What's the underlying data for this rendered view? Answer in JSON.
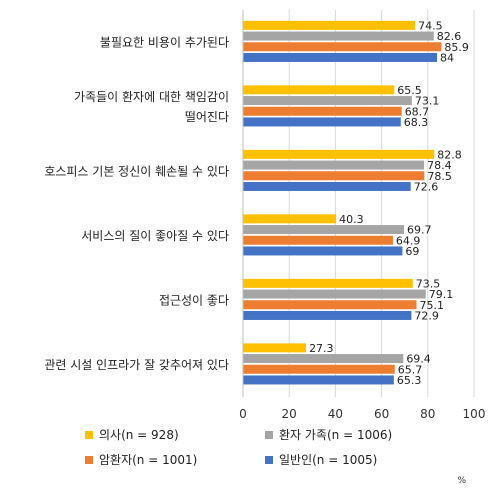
{
  "chart_data": {
    "type": "bar",
    "orientation": "horizontal",
    "categories": [
      [
        "불필요한 비용이 추가된다"
      ],
      [
        "가족들이 환자에 대한 책임감이",
        "떨어진다"
      ],
      [
        "호스피스 기본 정신이 훼손될 수 있다"
      ],
      [
        "서비스의 질이 좋아질 수 있다"
      ],
      [
        "접근성이 좋다"
      ],
      [
        "관련 시설 인프라가 잘 갖추어져 있다"
      ]
    ],
    "series": [
      {
        "name": "의사(n = 928)",
        "color": "#FFC000",
        "values": [
          74.5,
          65.5,
          82.8,
          40.3,
          73.5,
          27.3
        ]
      },
      {
        "name": "환자 가족(n = 1006)",
        "color": "#A5A5A5",
        "values": [
          82.6,
          73.1,
          78.4,
          69.7,
          79.1,
          69.4
        ]
      },
      {
        "name": "암환자(n = 1001)",
        "color": "#ED7D31",
        "values": [
          85.9,
          68.7,
          78.5,
          64.9,
          75.1,
          65.7
        ]
      },
      {
        "name": "일반인(n = 1005)",
        "color": "#4472C4",
        "values": [
          84,
          68.3,
          72.6,
          69,
          72.9,
          65.3
        ]
      }
    ],
    "xlim": [
      0,
      100
    ],
    "xticks": [
      0,
      20,
      40,
      60,
      80,
      100
    ],
    "grid": true,
    "legend": "bottom",
    "unit": "%"
  }
}
